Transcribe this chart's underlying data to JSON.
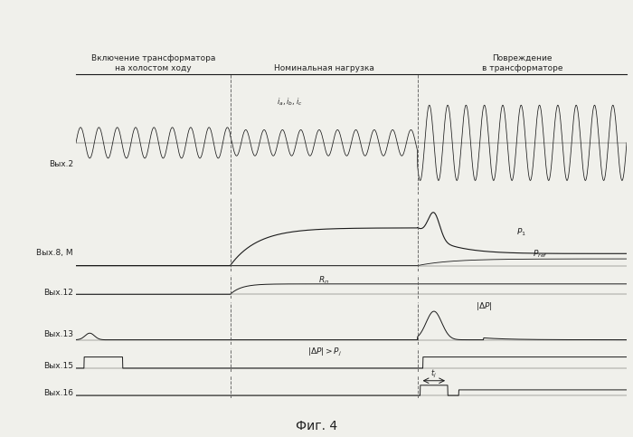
{
  "title": "Фиг. 4",
  "section_labels": [
    "Включение трансформатора\nна холостом ходу",
    "Номинальная нагрузка",
    "Повреждение\nв трансформаторе"
  ],
  "section_dividers": [
    0.28,
    0.62
  ],
  "row_labels": [
    "Вых.2",
    "Вых.8, М",
    "Вых.12",
    "Вых.13",
    "Вых.15",
    "Вых.16"
  ],
  "background_color": "#f0f0eb",
  "line_color": "#1a1a1a",
  "dashed_color": "#555555",
  "label_color": "#222222",
  "fig_width": 7.0,
  "fig_height": 4.83,
  "dpi": 100
}
